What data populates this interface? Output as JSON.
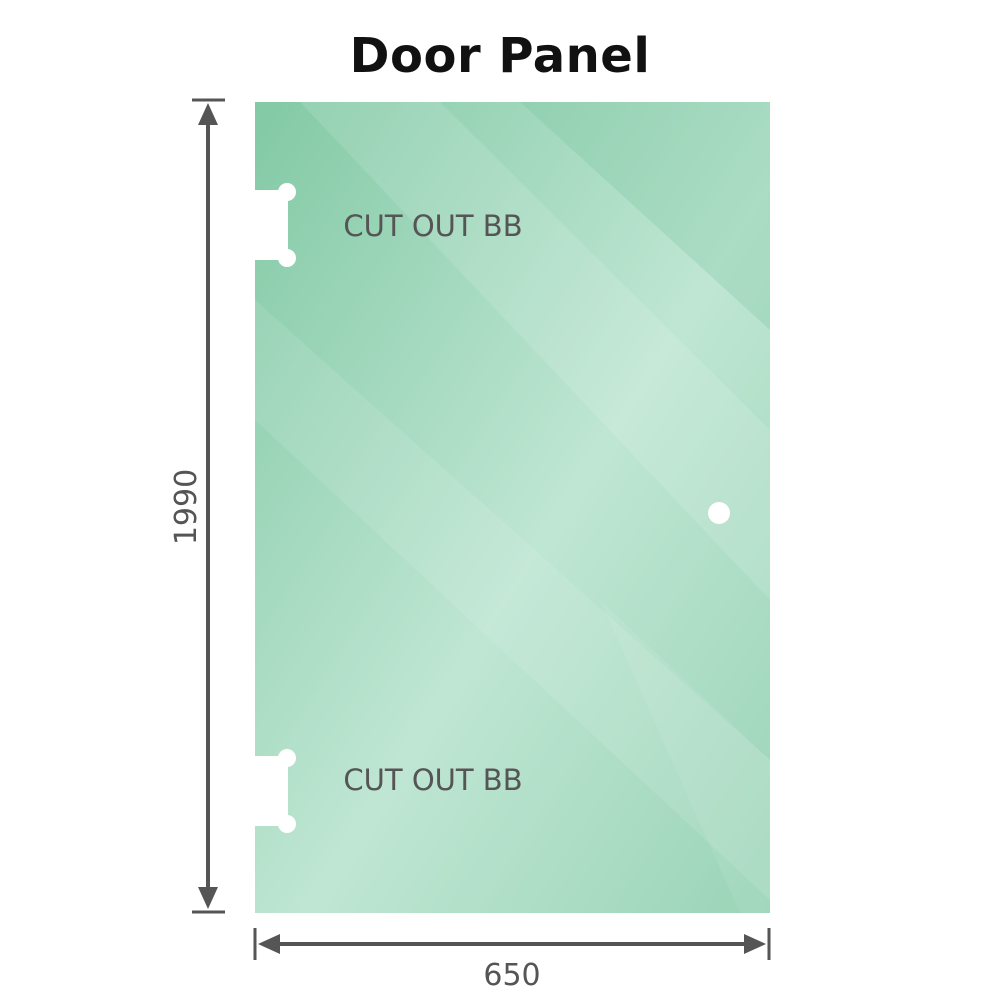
{
  "title": "Door Panel",
  "dimensions": {
    "height": "1990",
    "width": "650"
  },
  "cutouts": [
    {
      "label": "CUT OUT BB"
    },
    {
      "label": "CUT OUT BB"
    }
  ],
  "colors": {
    "glass": "#8ecfae",
    "glass_light": "#bde6d2",
    "dimension_line": "#555555"
  }
}
